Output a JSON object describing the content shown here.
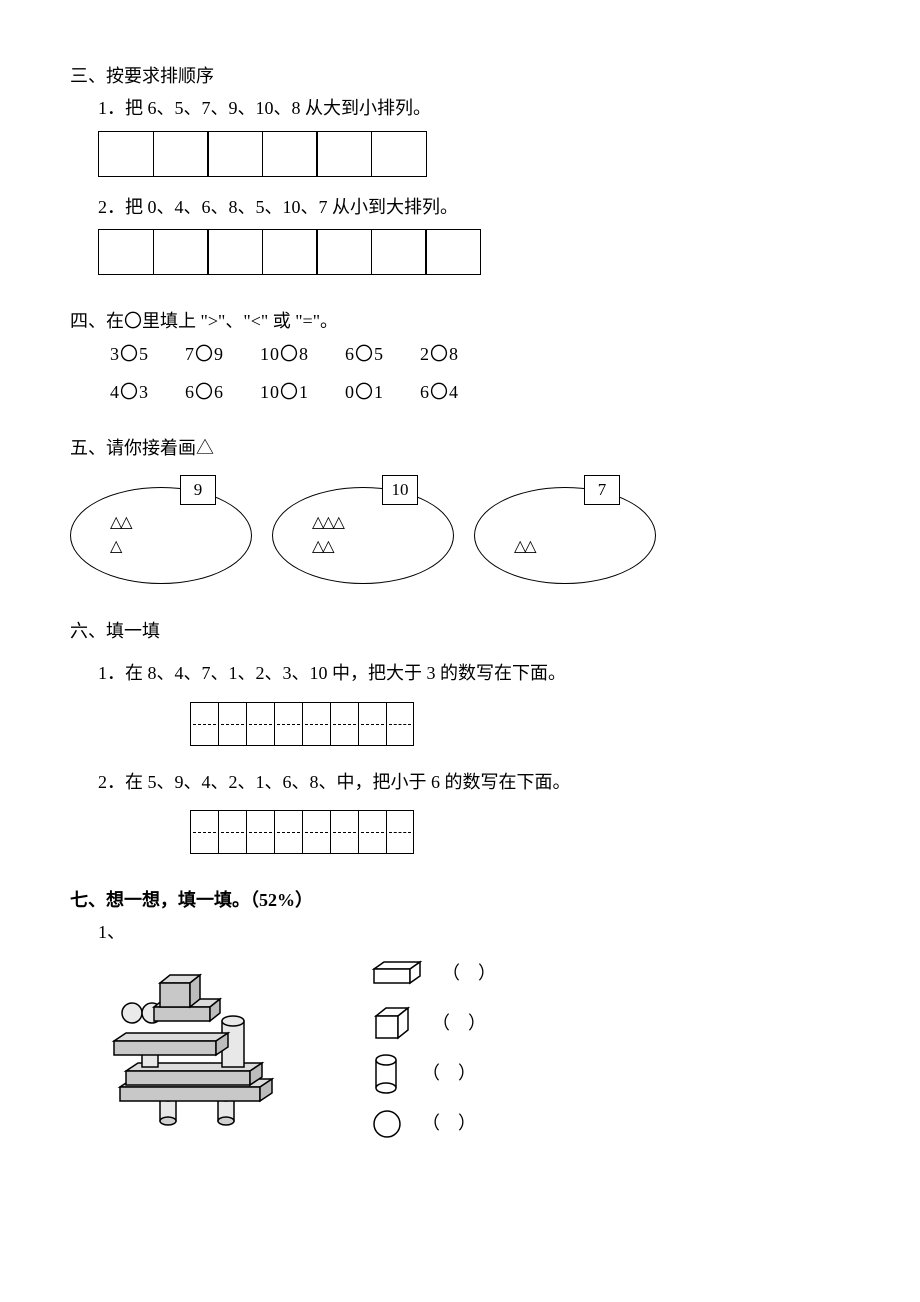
{
  "s3": {
    "title": "三、按要求排顺序",
    "q1": "1．把 6、5、7、9、10、8 从大到小排列。",
    "q1_cells": 6,
    "q2": "2．把 0、4、6、8、5、10、7 从小到大排列。",
    "q2_cells": 7
  },
  "s4": {
    "title": "四、在〇里填上 \">\"、\"<\" 或 \"=\"。",
    "rows": [
      [
        "3〇5",
        "7〇9",
        "10〇8",
        "6〇5",
        "2〇8"
      ],
      [
        "4〇3",
        "6〇6",
        "10〇1",
        "0〇1",
        "6〇4"
      ]
    ]
  },
  "s5": {
    "title": "五、请你接着画△",
    "ellipses": [
      {
        "num": "9",
        "row1": "△△",
        "row2": "△"
      },
      {
        "num": "10",
        "row1": "△△△",
        "row2": "△△"
      },
      {
        "num": "7",
        "row1": "",
        "row2": "△△"
      }
    ]
  },
  "s6": {
    "title": "六、填一填",
    "q1": "1．在 8、4、7、1、2、3、10 中，把大于 3 的数写在下面。",
    "q1_cells": 8,
    "q2": "2．在 5、9、4、2、1、6、8、中，把小于 6 的数写在下面。",
    "q2_cells": 8
  },
  "s7": {
    "title": "七、想一想，填一填。（52%）",
    "sub": "1、",
    "paren_l": "（",
    "paren_r": "）",
    "shapes": [
      "cuboid",
      "cube",
      "cylinder",
      "sphere"
    ],
    "blocks_color": "#b8b8b8",
    "stroke": "#000000"
  }
}
